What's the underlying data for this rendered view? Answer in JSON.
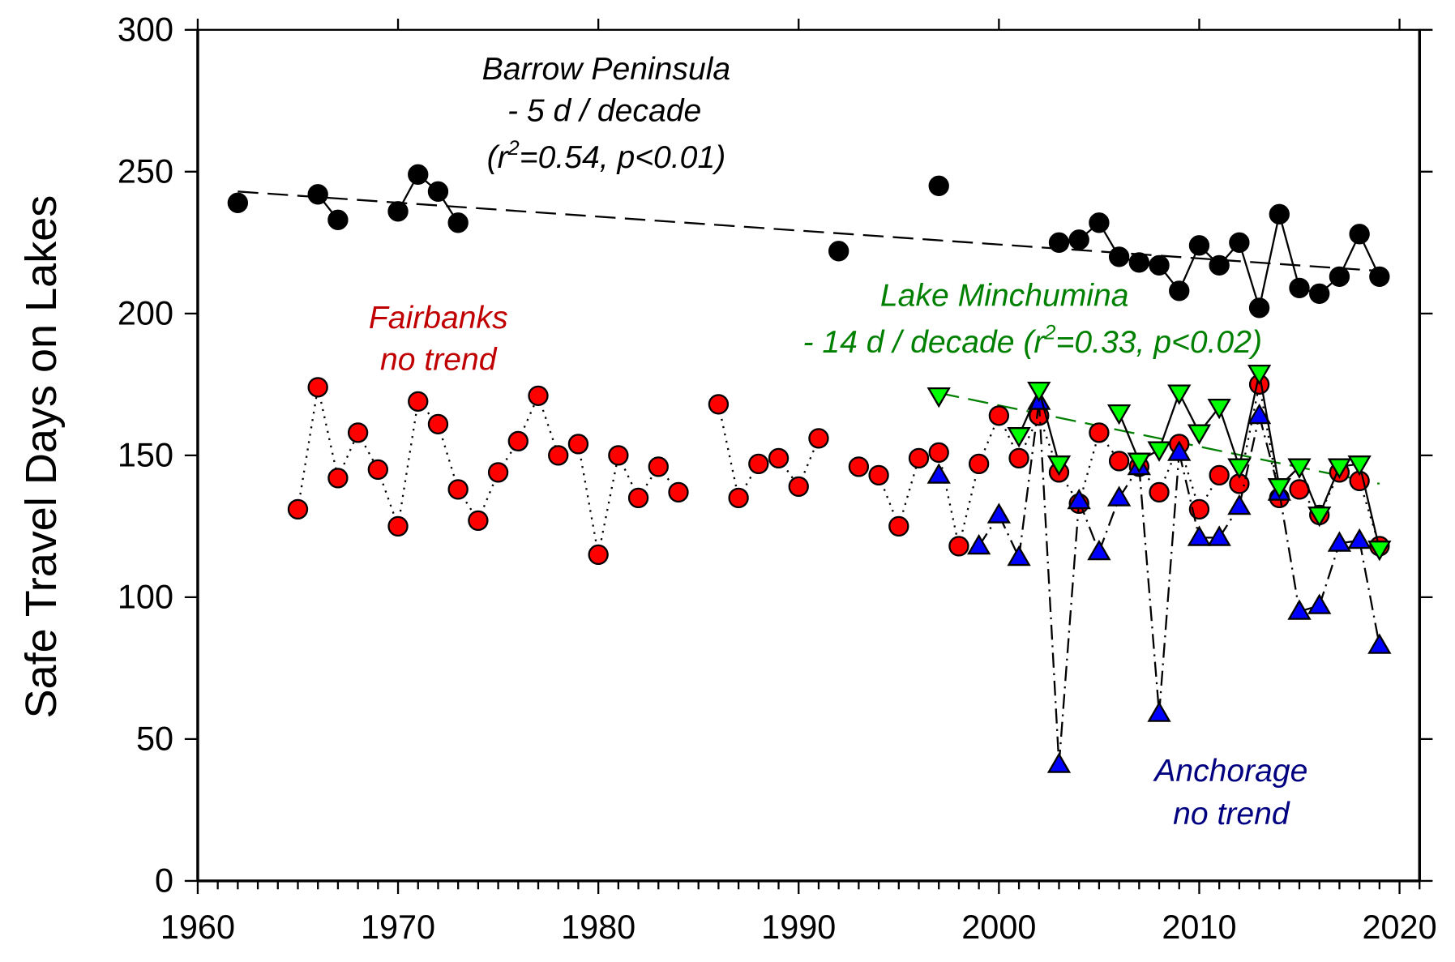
{
  "chart_data": {
    "type": "line",
    "title": "",
    "xlabel": "",
    "ylabel": "Safe Travel Days on Lakes",
    "xlim": [
      1960,
      2021
    ],
    "ylim": [
      0,
      300
    ],
    "xticks": [
      "1960",
      "1970",
      "1980",
      "1990",
      "2000",
      "2010",
      "2020"
    ],
    "yticks": [
      "0",
      "50",
      "100",
      "150",
      "200",
      "250",
      "300"
    ],
    "grid": false,
    "series": [
      {
        "name": "Barrow Peninsula",
        "marker": "circle",
        "color": "#000000",
        "line": "solid",
        "x": [
          1962,
          1966,
          1967,
          1970,
          1971,
          1972,
          1973,
          1992,
          1997,
          2003,
          2004,
          2005,
          2006,
          2007,
          2008,
          2009,
          2010,
          2011,
          2012,
          2013,
          2014,
          2015,
          2016,
          2017,
          2018,
          2019
        ],
        "y": [
          239,
          242,
          233,
          236,
          249,
          243,
          232,
          222,
          245,
          225,
          226,
          232,
          220,
          218,
          217,
          208,
          224,
          217,
          225,
          202,
          235,
          209,
          207,
          213,
          228,
          213
        ],
        "trend": {
          "x": [
            1962,
            2019
          ],
          "y": [
            243,
            215
          ]
        }
      },
      {
        "name": "Fairbanks",
        "marker": "circle",
        "color": "#ff0000",
        "line": "dotted",
        "x": [
          1965,
          1966,
          1967,
          1968,
          1969,
          1970,
          1971,
          1972,
          1973,
          1974,
          1975,
          1976,
          1977,
          1978,
          1979,
          1980,
          1981,
          1982,
          1983,
          1984,
          1986,
          1987,
          1988,
          1989,
          1990,
          1991,
          1993,
          1994,
          1995,
          1996,
          1997,
          1998,
          1999,
          2000,
          2001,
          2002,
          2003,
          2004,
          2005,
          2006,
          2007,
          2008,
          2009,
          2010,
          2011,
          2012,
          2013,
          2014,
          2015,
          2016,
          2017,
          2018,
          2019
        ],
        "y": [
          131,
          174,
          142,
          158,
          145,
          125,
          169,
          161,
          138,
          127,
          144,
          155,
          171,
          150,
          154,
          115,
          150,
          135,
          146,
          137,
          168,
          135,
          147,
          149,
          139,
          156,
          146,
          143,
          125,
          149,
          151,
          118,
          147,
          164,
          149,
          164,
          144,
          133,
          158,
          148,
          146,
          137,
          154,
          131,
          143,
          140,
          175,
          135,
          138,
          129,
          144,
          141,
          118
        ]
      },
      {
        "name": "Anchorage",
        "marker": "triangle-up",
        "color": "#0000ff",
        "line": "dashdot",
        "x": [
          1997,
          1999,
          2000,
          2001,
          2002,
          2003,
          2004,
          2005,
          2006,
          2007,
          2008,
          2009,
          2010,
          2011,
          2012,
          2013,
          2014,
          2015,
          2016,
          2017,
          2018,
          2019
        ],
        "y": [
          143,
          118,
          129,
          114,
          169,
          41,
          134,
          116,
          135,
          146,
          59,
          151,
          121,
          121,
          132,
          164,
          137,
          95,
          97,
          119,
          120,
          83
        ]
      },
      {
        "name": "Lake Minchumina",
        "marker": "triangle-down",
        "color": "#00ff00",
        "line": "solid",
        "x": [
          1997,
          2001,
          2002,
          2003,
          2006,
          2007,
          2008,
          2009,
          2010,
          2011,
          2012,
          2013,
          2014,
          2015,
          2016,
          2017,
          2018,
          2019
        ],
        "y": [
          171,
          157,
          173,
          147,
          165,
          148,
          152,
          172,
          158,
          167,
          146,
          179,
          139,
          146,
          129,
          146,
          147,
          117
        ],
        "trend": {
          "x": [
            1997,
            2019
          ],
          "y": [
            172,
            140
          ]
        }
      }
    ],
    "annotations": {
      "barrow": {
        "line1": "Barrow Peninsula",
        "line2": "- 5 d / decade",
        "line3_pre": "(r",
        "line3_sup": "2",
        "line3_post": "=0.54, p<0.01)",
        "color": "#000000"
      },
      "fairbanks": {
        "line1": "Fairbanks",
        "line2": "no trend",
        "color": "#c00000"
      },
      "minchumina": {
        "line1": "Lake Minchumina",
        "line2_pre": "- 14 d / decade (r",
        "line2_sup": "2",
        "line2_post": "=0.33, p<0.02)",
        "color": "#008000"
      },
      "anchorage": {
        "line1": "Anchorage",
        "line2": "no trend",
        "color": "#000080"
      }
    }
  }
}
